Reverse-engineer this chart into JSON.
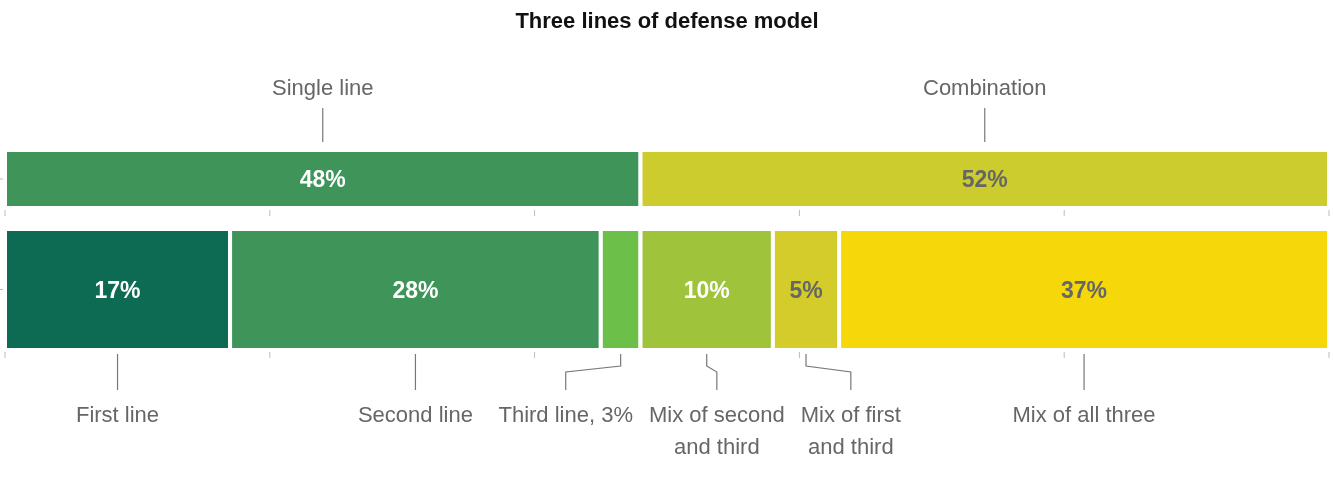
{
  "chart_data": [
    {
      "type": "bar",
      "title": "Three lines of defense model",
      "orientation": "horizontal",
      "stacked": true,
      "categories": [
        null
      ],
      "xlim": [
        0,
        100
      ],
      "xticks": [
        {
          "value": 0,
          "label": null
        },
        {
          "value": 20,
          "label": null
        },
        {
          "value": 40,
          "label": null
        },
        {
          "value": 60,
          "label": null
        },
        {
          "value": 80,
          "label": null
        },
        {
          "value": 100,
          "label": null
        }
      ],
      "legend": false,
      "series": [
        {
          "name": "Single line",
          "color": "#3f945a",
          "values": [
            48
          ],
          "value_labels": [
            "48%"
          ]
        },
        {
          "name": "Combination",
          "color": "#cdcc2e",
          "values": [
            52
          ],
          "value_labels": [
            "52%"
          ]
        }
      ]
    },
    {
      "type": "bar",
      "orientation": "horizontal",
      "stacked": true,
      "categories": [
        null
      ],
      "xlim": [
        0,
        100
      ],
      "xticks": [
        {
          "value": 0,
          "label": null
        },
        {
          "value": 20,
          "label": null
        },
        {
          "value": 40,
          "label": null
        },
        {
          "value": 60,
          "label": null
        },
        {
          "value": 80,
          "label": null
        },
        {
          "value": 100,
          "label": null
        }
      ],
      "legend": false,
      "series": [
        {
          "name": "First line",
          "color": "#0e6b53",
          "values": [
            17
          ],
          "value_labels": [
            "17%"
          ]
        },
        {
          "name": "Second line",
          "color": "#3f945a",
          "values": [
            28
          ],
          "value_labels": [
            "28%"
          ]
        },
        {
          "name": "Third line, 3%",
          "color": "#6cc04a",
          "values": [
            3
          ],
          "value_labels": [
            null
          ]
        },
        {
          "name": "Mix of second and third",
          "color": "#9fc43c",
          "values": [
            10
          ],
          "value_labels": [
            "10%"
          ]
        },
        {
          "name": "Mix of first and third",
          "color": "#d4cc2a",
          "values": [
            5
          ],
          "value_labels": [
            "5%"
          ]
        },
        {
          "name": "Mix of all three",
          "color": "#f6d80a",
          "values": [
            37
          ],
          "value_labels": [
            "37%"
          ]
        }
      ]
    }
  ]
}
